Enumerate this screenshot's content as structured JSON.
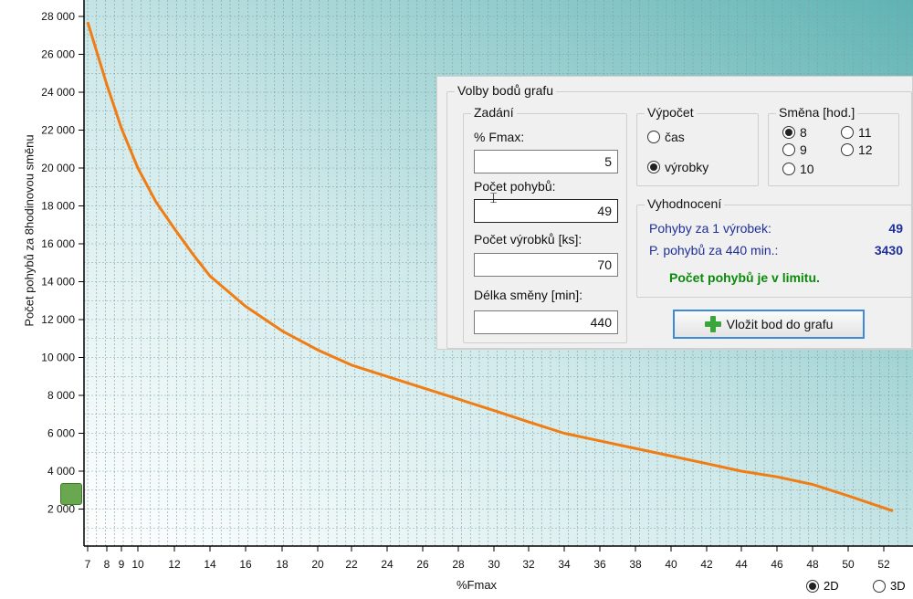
{
  "chart_data": {
    "type": "line",
    "xlabel": "%Fmax",
    "ylabel": "Počet pohybů za  8hodinovou směnu",
    "x_ticks": [
      "7",
      "8",
      "9",
      "10",
      "12",
      "14",
      "16",
      "18",
      "20",
      "22",
      "24",
      "26",
      "28",
      "30",
      "32",
      "34",
      "36",
      "38",
      "40",
      "42",
      "44",
      "46",
      "48",
      "50",
      "52"
    ],
    "y_ticks": [
      "2 000",
      "4 000",
      "6 000",
      "8 000",
      "10 000",
      "12 000",
      "14 000",
      "16 000",
      "18 000",
      "20 000",
      "22 000",
      "24 000",
      "26 000",
      "28 000"
    ],
    "xlim": [
      7,
      53
    ],
    "ylim": [
      0,
      28000
    ],
    "series": [
      {
        "color": "#f07d14",
        "points": [
          [
            7,
            27700
          ],
          [
            8,
            24400
          ],
          [
            9,
            22100
          ],
          [
            10,
            20000
          ],
          [
            11,
            18200
          ],
          [
            12,
            16800
          ],
          [
            13,
            15500
          ],
          [
            14,
            14300
          ],
          [
            16,
            12700
          ],
          [
            18,
            11400
          ],
          [
            20,
            10400
          ],
          [
            22,
            9600
          ],
          [
            24,
            9000
          ],
          [
            26,
            8400
          ],
          [
            28,
            7800
          ],
          [
            30,
            7200
          ],
          [
            32,
            6600
          ],
          [
            34,
            6000
          ],
          [
            36,
            5600
          ],
          [
            38,
            5200
          ],
          [
            40,
            4800
          ],
          [
            42,
            4400
          ],
          [
            44,
            4000
          ],
          [
            46,
            3700
          ],
          [
            48,
            3300
          ],
          [
            50,
            2700
          ],
          [
            52.5,
            1900
          ]
        ]
      }
    ]
  },
  "panel": {
    "title": "Volby bodů grafu",
    "zadani": {
      "title": "Zadání",
      "fmax_label": "% Fmax:",
      "fmax_value": "5",
      "pohyby_label": "Počet pohybů:",
      "pohyby_value": "49",
      "vyrobky_label": "Počet výrobků [ks]:",
      "vyrobky_value": "70",
      "smena_label": "Délka směny [min]:",
      "smena_value": "440"
    },
    "vypocet": {
      "title": "Výpočet",
      "opt1": "čas",
      "opt2": "výrobky"
    },
    "smena": {
      "title": "Směna [hod.]",
      "o8": "8",
      "o9": "9",
      "o10": "10",
      "o11": "11",
      "o12": "12"
    },
    "vyhodnoceni": {
      "title": "Vyhodnocení",
      "row1_label": "Pohyby za 1 výrobek:",
      "row1_value": "49",
      "row2_label": "P. pohybů za 440 min.:",
      "row2_value": "3430",
      "status": "Počet pohybů je v limitu."
    },
    "button_label": "Vložit bod do grafu"
  },
  "view": {
    "opt_2d": "2D",
    "opt_3d": "3D"
  }
}
